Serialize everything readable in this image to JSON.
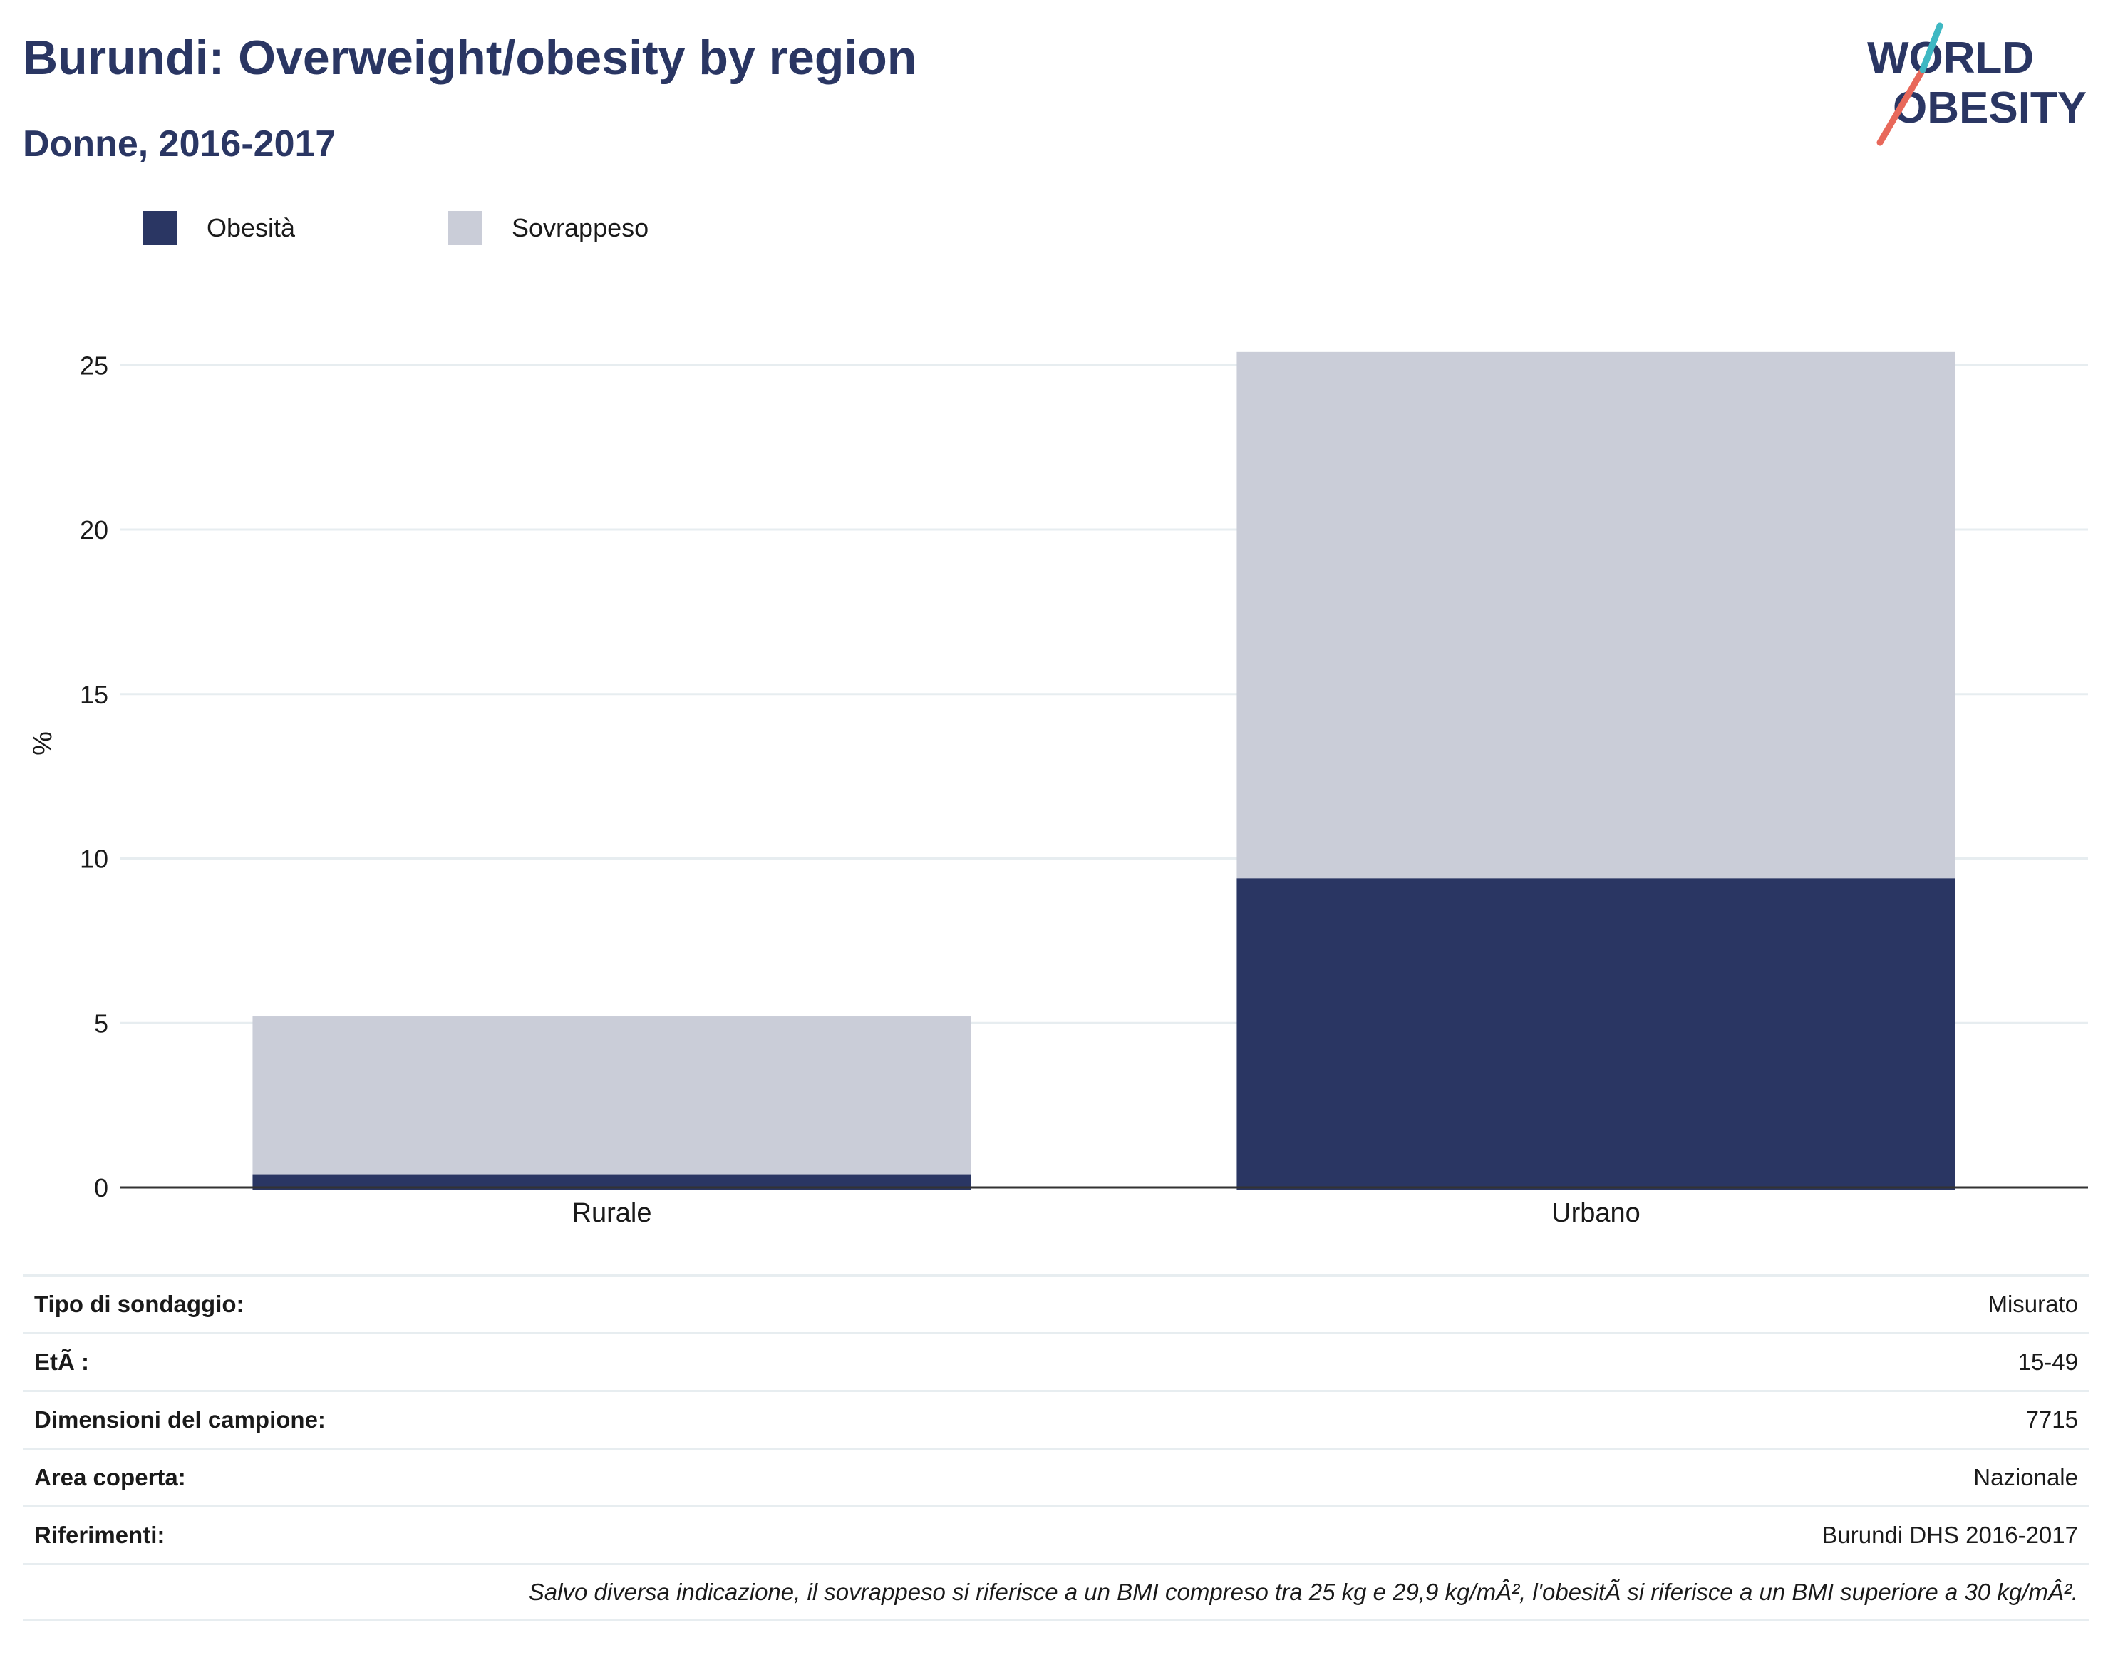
{
  "header": {
    "title": "Burundi: Overweight/obesity by region",
    "subtitle": "Donne, 2016-2017"
  },
  "logo": {
    "line1": "WORLD",
    "line2": "OBESITY",
    "colors": {
      "text": "#2a3663",
      "slash_red": "#e8685a",
      "slash_teal": "#3fb8c3"
    }
  },
  "colors": {
    "obesity": "#2a3663",
    "overweight": "#cacdd8",
    "grid": "#e7edf0",
    "axis": "#333333"
  },
  "chart_data": {
    "type": "bar",
    "stacked": true,
    "categories": [
      "Rurale",
      "Urbano"
    ],
    "series": [
      {
        "name": "Obesità",
        "values": [
          0.4,
          9.4
        ],
        "color": "#2a3663"
      },
      {
        "name": "Sovrappeso",
        "values": [
          4.8,
          16.0
        ],
        "color": "#cacdd8"
      }
    ],
    "title": "Burundi: Overweight/obesity by region",
    "subtitle": "Donne, 2016-2017",
    "xlabel": "",
    "ylabel": "%",
    "ylim": [
      0,
      27
    ],
    "yticks": [
      0,
      5,
      10,
      15,
      20,
      25
    ],
    "grid": true,
    "legend_position": "top-left"
  },
  "meta": [
    {
      "key": "Tipo di sondaggio:",
      "value": "Misurato"
    },
    {
      "key": "EtÃ :",
      "value": "15-49"
    },
    {
      "key": "Dimensioni del campione:",
      "value": "7715"
    },
    {
      "key": "Area coperta:",
      "value": "Nazionale"
    },
    {
      "key": "Riferimenti:",
      "value": "Burundi DHS 2016-2017"
    }
  ],
  "note": "Salvo diversa indicazione, il sovrappeso si riferisce a un BMI compreso tra 25 kg e 29,9 kg/mÂ², l'obesitÃ  si riferisce a un BMI superiore a 30 kg/mÂ²."
}
